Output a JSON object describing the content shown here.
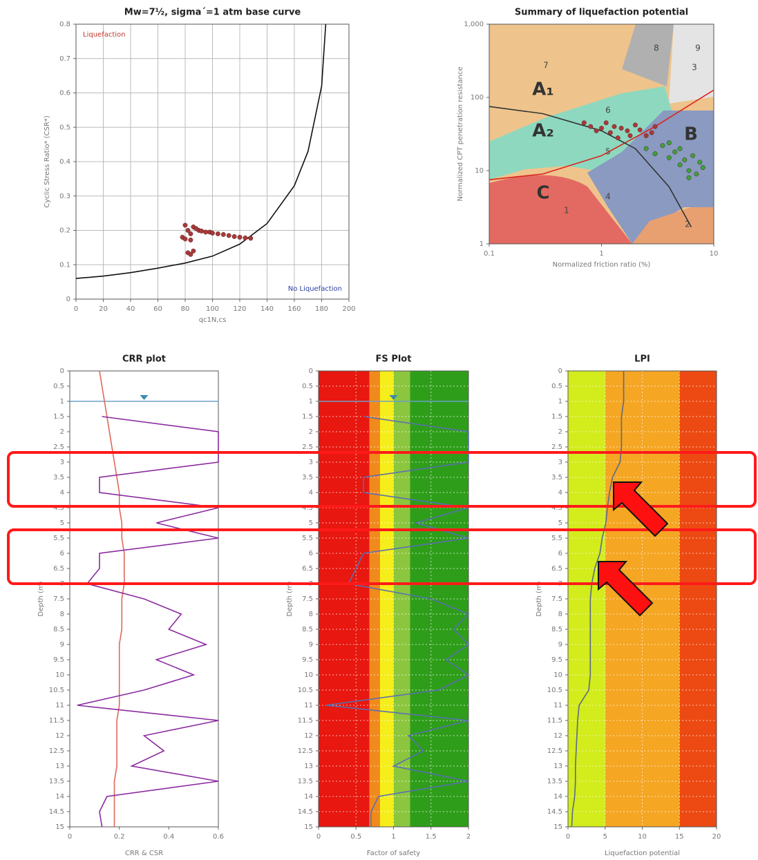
{
  "chart_data": [
    {
      "type": "scatter",
      "title": "Mw=7½, sigma´=1 atm base curve",
      "xlabel": "qc1N,cs",
      "ylabel": "Cyclic Stress Ratio* (CSR*)",
      "xlim": [
        0,
        200
      ],
      "ylim": [
        0,
        0.8
      ],
      "xticks": [
        0,
        20,
        40,
        60,
        80,
        100,
        120,
        140,
        160,
        180,
        200
      ],
      "yticks": [
        0,
        0.1,
        0.2,
        0.3,
        0.4,
        0.5,
        0.6,
        0.7,
        0.8
      ],
      "grid": true,
      "annotations": [
        {
          "text": "Liquefaction",
          "color": "#c0392b"
        },
        {
          "text": "No Liquefaction",
          "color": "#2c3e9e"
        }
      ],
      "curves": [
        {
          "color": "#111111",
          "x": [
            0,
            20,
            40,
            60,
            80,
            100,
            120,
            140,
            160,
            170,
            180,
            183
          ],
          "values": [
            0.06,
            0.067,
            0.077,
            0.09,
            0.105,
            0.125,
            0.16,
            0.22,
            0.33,
            0.43,
            0.62,
            0.8
          ]
        }
      ],
      "series": [
        {
          "color": "#a83a3a",
          "x": [
            80,
            82,
            84,
            86,
            88,
            90,
            92,
            95,
            98,
            100,
            104,
            108,
            112,
            116,
            120,
            124,
            78,
            80,
            84,
            82,
            84,
            86,
            88,
            128
          ],
          "values": [
            0.215,
            0.2,
            0.19,
            0.21,
            0.205,
            0.2,
            0.198,
            0.195,
            0.195,
            0.192,
            0.19,
            0.188,
            0.185,
            0.182,
            0.18,
            0.178,
            0.18,
            0.175,
            0.172,
            0.135,
            0.13,
            0.14,
            0.205,
            0.177
          ]
        }
      ]
    },
    {
      "type": "scatter",
      "title": "Summary of liquefaction potential",
      "xlabel": "Normalized friction ratio (%)",
      "ylabel": "Normalized CPT penetration resistance",
      "xlog": true,
      "ylog": true,
      "xlim": [
        0.1,
        10
      ],
      "ylim": [
        1,
        1000
      ],
      "xticks": [
        0.1,
        1,
        10
      ],
      "yticks": [
        1,
        10,
        100,
        {
          "value": 1000,
          "label": "1,000"
        }
      ],
      "grid": false,
      "zones": [
        "A₁",
        "A₂",
        "B",
        "C",
        "1",
        "2",
        "3",
        "4",
        "5",
        "6",
        "7",
        "8",
        "9"
      ],
      "curves": [
        {
          "color": "#d9231d",
          "x": [
            0.1,
            0.3,
            1,
            3,
            10
          ],
          "values": [
            7.5,
            9,
            16,
            40,
            126
          ]
        },
        {
          "color": "#333333",
          "x": [
            0.1,
            0.3,
            1,
            2,
            4,
            6.3
          ],
          "values": [
            75,
            60,
            35,
            20,
            6,
            1.7
          ]
        }
      ],
      "series": [
        {
          "color": "#a83a3a",
          "x": [
            0.8,
            0.9,
            1,
            1.1,
            1.2,
            1.3,
            1.5,
            1.7,
            2,
            2.2,
            2.5,
            2.8,
            1.4,
            1.8,
            3,
            0.7
          ],
          "values": [
            40,
            35,
            38,
            45,
            33,
            40,
            38,
            35,
            42,
            36,
            30,
            33,
            28,
            30,
            40,
            45
          ]
        },
        {
          "color": "#3aa33a",
          "x": [
            2.5,
            3,
            3.5,
            4,
            4.5,
            5,
            5.5,
            6,
            6.5,
            7,
            7.5,
            8,
            4,
            5,
            6
          ],
          "values": [
            20,
            17,
            22,
            15,
            18,
            12,
            14,
            10,
            16,
            9,
            13,
            11,
            24,
            20,
            8
          ]
        }
      ]
    },
    {
      "type": "profile",
      "title": "CRR plot",
      "xlabel": "CRR & CSR",
      "ylabel": "Depth (m)",
      "xlim": [
        0,
        0.6
      ],
      "ylim": [
        0,
        15
      ],
      "y_inverted": true,
      "xticks": [
        0,
        0.2,
        0.4,
        0.6
      ],
      "yticks": [
        0,
        0.5,
        1,
        1.5,
        2,
        2.5,
        3,
        3.5,
        4,
        4.5,
        5,
        5.5,
        6,
        6.5,
        7,
        7.5,
        8,
        8.5,
        9,
        9.5,
        10,
        10.5,
        11,
        11.5,
        12,
        12.5,
        13,
        13.5,
        14,
        14.5,
        15
      ],
      "grid": true,
      "water_table_depth": 1,
      "depth": [
        0,
        0.5,
        1,
        1.5,
        2,
        2.5,
        3,
        3.5,
        4,
        4.5,
        5,
        5.5,
        6,
        6.5,
        7,
        7.5,
        8,
        8.5,
        9,
        9.5,
        10,
        10.5,
        11,
        11.5,
        12,
        12.5,
        13,
        13.5,
        14,
        14.5,
        15
      ],
      "series": [
        {
          "color": "#e0675a",
          "values": [
            0.12,
            0.13,
            0.14,
            0.15,
            0.16,
            0.17,
            0.18,
            0.19,
            0.2,
            0.2,
            0.21,
            0.21,
            0.22,
            0.22,
            0.22,
            0.21,
            0.21,
            0.21,
            0.2,
            0.2,
            0.2,
            0.2,
            0.2,
            0.19,
            0.19,
            0.19,
            0.19,
            0.18,
            0.18,
            0.18,
            0.18
          ]
        },
        {
          "color": "#8a2aa0",
          "values": [
            null,
            null,
            null,
            0.13,
            0.6,
            0.6,
            0.6,
            0.12,
            0.12,
            0.6,
            0.35,
            0.6,
            0.12,
            0.12,
            0.07,
            0.3,
            0.45,
            0.4,
            0.55,
            0.35,
            0.5,
            0.3,
            0.03,
            0.6,
            0.3,
            0.38,
            0.25,
            0.6,
            0.15,
            0.12,
            0.13
          ]
        }
      ]
    },
    {
      "type": "profile",
      "title": "FS Plot",
      "xlabel": "Factor of safety",
      "ylabel": "Depth (m)",
      "xlim": [
        0,
        2
      ],
      "ylim": [
        0,
        15
      ],
      "y_inverted": true,
      "xticks": [
        0,
        0.5,
        1,
        1.5,
        2
      ],
      "yticks": [
        0,
        0.5,
        1,
        1.5,
        2,
        2.5,
        3,
        3.5,
        4,
        4.5,
        5,
        5.5,
        6,
        6.5,
        7,
        7.5,
        8,
        8.5,
        9,
        9.5,
        10,
        10.5,
        11,
        11.5,
        12,
        12.5,
        13,
        13.5,
        14,
        14.5,
        15
      ],
      "grid": true,
      "water_table_depth": 1,
      "bands": [
        {
          "from": 0,
          "to": 0.68,
          "color": "#e8170f"
        },
        {
          "from": 0.68,
          "to": 0.82,
          "color": "#f08a1c"
        },
        {
          "from": 0.82,
          "to": 1,
          "color": "#f5ee1a"
        },
        {
          "from": 1,
          "to": 1.22,
          "color": "#8cc63f"
        },
        {
          "from": 1.22,
          "to": 2,
          "color": "#2e9e1a"
        }
      ],
      "depth": [
        0,
        0.5,
        1,
        1.5,
        2,
        2.5,
        3,
        3.5,
        4,
        4.5,
        5,
        5.5,
        6,
        6.5,
        7,
        7.5,
        8,
        8.5,
        9,
        9.5,
        10,
        10.5,
        11,
        11.5,
        12,
        12.5,
        13,
        13.5,
        14,
        14.5,
        15
      ],
      "series": [
        {
          "color": "#5a6fb0",
          "values": [
            null,
            null,
            null,
            0.6,
            2,
            2,
            2,
            0.6,
            0.6,
            2,
            1.3,
            2,
            0.6,
            0.5,
            0.4,
            1.5,
            2,
            1.8,
            2,
            1.7,
            2,
            1.6,
            0.1,
            2,
            1.2,
            1.4,
            1,
            2,
            0.8,
            0.7,
            0.7
          ]
        }
      ]
    },
    {
      "type": "profile",
      "title": "LPI",
      "xlabel": "Liquefaction potential",
      "ylabel": "Depth (m)",
      "xlim": [
        0,
        20
      ],
      "ylim": [
        0,
        15
      ],
      "y_inverted": true,
      "xticks": [
        0,
        5,
        10,
        15,
        20
      ],
      "yticks": [
        0,
        0.5,
        1,
        1.5,
        2,
        2.5,
        3,
        3.5,
        4,
        4.5,
        5,
        5.5,
        6,
        6.5,
        7,
        7.5,
        8,
        8.5,
        9,
        9.5,
        10,
        10.5,
        11,
        11.5,
        12,
        12.5,
        13,
        13.5,
        14,
        14.5,
        15
      ],
      "grid": true,
      "bands": [
        {
          "from": 0,
          "to": 5,
          "color": "#d2ec1c"
        },
        {
          "from": 5,
          "to": 15,
          "color": "#f5a623"
        },
        {
          "from": 15,
          "to": 20,
          "color": "#ec4a12"
        }
      ],
      "depth": [
        0,
        0.5,
        1,
        1.5,
        2,
        2.5,
        3,
        3.5,
        4,
        4.5,
        5,
        5.5,
        6,
        6.5,
        7,
        7.5,
        8,
        8.5,
        9,
        9.5,
        10,
        10.5,
        11,
        11.5,
        12,
        12.5,
        13,
        13.5,
        14,
        14.5,
        15
      ],
      "series": [
        {
          "color": "#5a6a8a",
          "values": [
            7.5,
            7.5,
            7.5,
            7.2,
            7.2,
            7.2,
            7,
            6,
            5.6,
            5.3,
            5.1,
            4.6,
            4.3,
            3.6,
            3.2,
            3,
            3,
            3,
            3,
            3,
            3,
            2.8,
            1.5,
            1.3,
            1.2,
            1.1,
            1,
            1,
            0.9,
            0.6,
            0.5
          ]
        }
      ]
    }
  ]
}
